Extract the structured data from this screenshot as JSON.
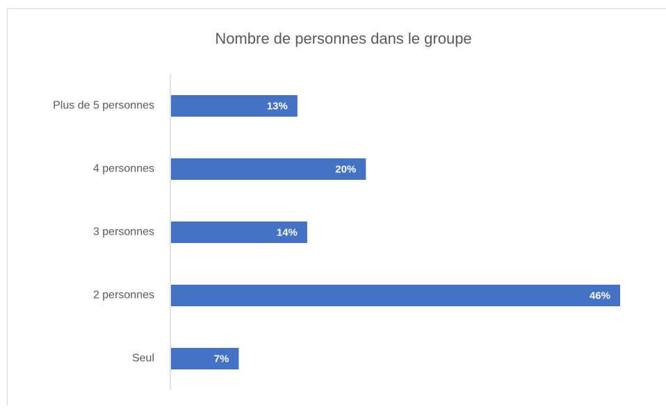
{
  "chart_data": {
    "type": "bar",
    "orientation": "horizontal",
    "title": "Nombre de personnes dans le groupe",
    "categories": [
      "Plus de 5 personnes",
      "4 personnes",
      "3 personnes",
      "2 personnes",
      "Seul"
    ],
    "values": [
      13,
      20,
      14,
      46,
      7
    ],
    "value_labels": [
      "13%",
      "20%",
      "14%",
      "46%",
      "7%"
    ],
    "color": "#4472c4"
  }
}
